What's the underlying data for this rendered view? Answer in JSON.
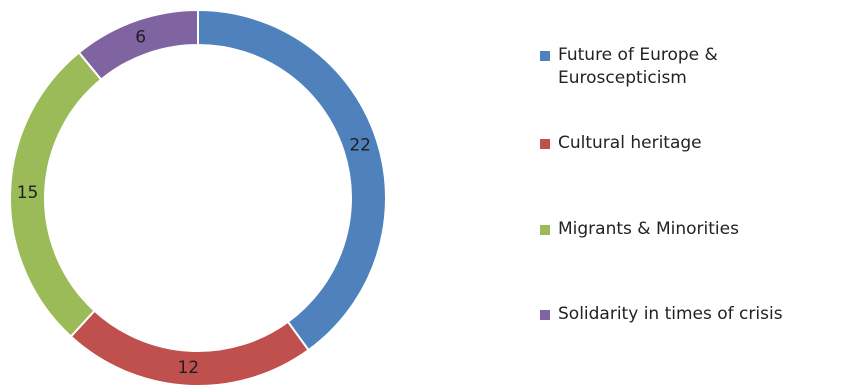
{
  "chart_data": {
    "type": "pie",
    "variant": "donut",
    "categories": [
      "Future of Europe &\nEuroscepticism",
      "Cultural heritage",
      "Migrants & Minorities",
      "Solidarity in times of crisis"
    ],
    "values": [
      22,
      12,
      15,
      6
    ],
    "colors": [
      "#4f81bd",
      "#c0504d",
      "#9bbb59",
      "#8064a2"
    ],
    "data_labels": [
      "22",
      "12",
      "15",
      "6"
    ],
    "title": "",
    "legend_position": "right"
  }
}
